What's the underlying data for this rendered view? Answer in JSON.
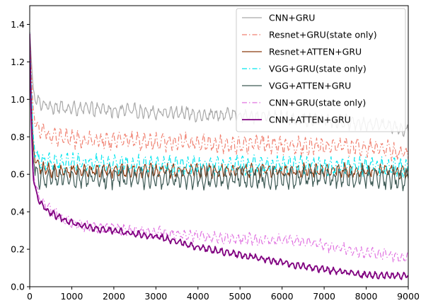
{
  "chart_data": {
    "type": "line",
    "title": "",
    "xlabel": "",
    "ylabel": "",
    "xlim": [
      0,
      9000
    ],
    "ylim": [
      0,
      1.5
    ],
    "xticks": [
      "0",
      "1000",
      "2000",
      "3000",
      "4000",
      "5000",
      "6000",
      "7000",
      "8000",
      "9000"
    ],
    "yticks": [
      "0.0",
      "0.2",
      "0.4",
      "0.6",
      "0.8",
      "1.0",
      "1.2",
      "1.4"
    ],
    "grid": false,
    "legend_position": "top-right",
    "series": [
      {
        "name": "CNN+GRU",
        "color": "#a9a9a9",
        "style": "solid",
        "x": [
          0,
          30,
          80,
          150,
          250,
          400,
          600,
          1000,
          1500,
          2000,
          2500,
          3000,
          3500,
          4000,
          4500,
          5000,
          5500,
          6000,
          6500,
          7000,
          7500,
          8000,
          8500,
          9000
        ],
        "values": [
          1.36,
          1.25,
          1.06,
          0.99,
          0.98,
          0.97,
          0.96,
          0.95,
          0.95,
          0.94,
          0.94,
          0.93,
          0.93,
          0.92,
          0.92,
          0.91,
          0.91,
          0.9,
          0.89,
          0.89,
          0.88,
          0.87,
          0.86,
          0.83
        ],
        "amplitude": 0.03
      },
      {
        "name": "Resnet+GRU(state only)",
        "color": "#f08070",
        "style": "dashdot",
        "x": [
          0,
          30,
          80,
          150,
          250,
          400,
          600,
          1000,
          1500,
          2000,
          2500,
          3000,
          3500,
          4000,
          4500,
          5000,
          5500,
          6000,
          6500,
          7000,
          7500,
          8000,
          8500,
          9000
        ],
        "values": [
          1.35,
          1.2,
          0.95,
          0.86,
          0.83,
          0.82,
          0.8,
          0.79,
          0.78,
          0.78,
          0.78,
          0.77,
          0.77,
          0.77,
          0.76,
          0.76,
          0.76,
          0.76,
          0.75,
          0.75,
          0.75,
          0.74,
          0.73,
          0.71
        ],
        "amplitude": 0.04
      },
      {
        "name": "Resnet+ATTEN+GRU",
        "color": "#8b3a0f",
        "style": "solid",
        "x": [
          0,
          30,
          80,
          150,
          250,
          400,
          600,
          1000,
          1500,
          2000,
          2500,
          3000,
          3500,
          4000,
          4500,
          5000,
          5500,
          6000,
          6500,
          7000,
          7500,
          8000,
          8500,
          9000
        ],
        "values": [
          1.34,
          1.1,
          0.75,
          0.66,
          0.63,
          0.62,
          0.62,
          0.62,
          0.62,
          0.62,
          0.62,
          0.62,
          0.62,
          0.62,
          0.62,
          0.62,
          0.62,
          0.62,
          0.62,
          0.62,
          0.62,
          0.62,
          0.62,
          0.61
        ],
        "amplitude": 0.03
      },
      {
        "name": "VGG+GRU(state only)",
        "color": "#00e5ee",
        "style": "dashdot",
        "x": [
          0,
          30,
          80,
          150,
          250,
          400,
          600,
          1000,
          1500,
          2000,
          2500,
          3000,
          3500,
          4000,
          4500,
          5000,
          5500,
          6000,
          6500,
          7000,
          7500,
          8000,
          8500,
          9000
        ],
        "values": [
          1.36,
          1.12,
          0.8,
          0.7,
          0.67,
          0.66,
          0.66,
          0.66,
          0.66,
          0.66,
          0.65,
          0.65,
          0.65,
          0.65,
          0.65,
          0.65,
          0.65,
          0.65,
          0.65,
          0.64,
          0.64,
          0.64,
          0.64,
          0.63
        ],
        "amplitude": 0.04
      },
      {
        "name": "VGG+ATTEN+GRU",
        "color": "#3e5a55",
        "style": "solid",
        "x": [
          0,
          30,
          80,
          150,
          250,
          400,
          600,
          1000,
          1500,
          2000,
          2500,
          3000,
          3500,
          4000,
          4500,
          5000,
          5500,
          6000,
          6500,
          7000,
          7500,
          8000,
          8500,
          9000
        ],
        "values": [
          1.33,
          1.0,
          0.68,
          0.6,
          0.58,
          0.58,
          0.58,
          0.58,
          0.58,
          0.58,
          0.58,
          0.58,
          0.58,
          0.58,
          0.58,
          0.58,
          0.58,
          0.58,
          0.58,
          0.58,
          0.58,
          0.58,
          0.58,
          0.57
        ],
        "amplitude": 0.045
      },
      {
        "name": "CNN+GRU(state only)",
        "color": "#e070e0",
        "style": "dashdot",
        "x": [
          0,
          30,
          80,
          150,
          250,
          400,
          600,
          1000,
          1500,
          2000,
          2500,
          3000,
          3500,
          4000,
          4500,
          5000,
          5500,
          6000,
          6500,
          7000,
          7500,
          8000,
          8500,
          9000
        ],
        "values": [
          1.36,
          1.0,
          0.62,
          0.52,
          0.47,
          0.43,
          0.39,
          0.34,
          0.32,
          0.31,
          0.3,
          0.29,
          0.28,
          0.27,
          0.26,
          0.26,
          0.25,
          0.25,
          0.24,
          0.22,
          0.2,
          0.18,
          0.17,
          0.15
        ],
        "amplitude": 0.025
      },
      {
        "name": "CNN+ATTEN+GRU",
        "color": "#800080",
        "style": "solid",
        "x": [
          0,
          30,
          80,
          150,
          250,
          400,
          600,
          1000,
          1500,
          2000,
          2500,
          3000,
          3500,
          4000,
          4500,
          5000,
          5500,
          6000,
          6500,
          7000,
          7500,
          8000,
          8500,
          9000
        ],
        "values": [
          1.35,
          0.95,
          0.58,
          0.5,
          0.45,
          0.41,
          0.38,
          0.34,
          0.31,
          0.3,
          0.28,
          0.27,
          0.24,
          0.21,
          0.19,
          0.17,
          0.15,
          0.13,
          0.11,
          0.09,
          0.08,
          0.06,
          0.06,
          0.06
        ],
        "amplitude": 0.015
      }
    ]
  }
}
